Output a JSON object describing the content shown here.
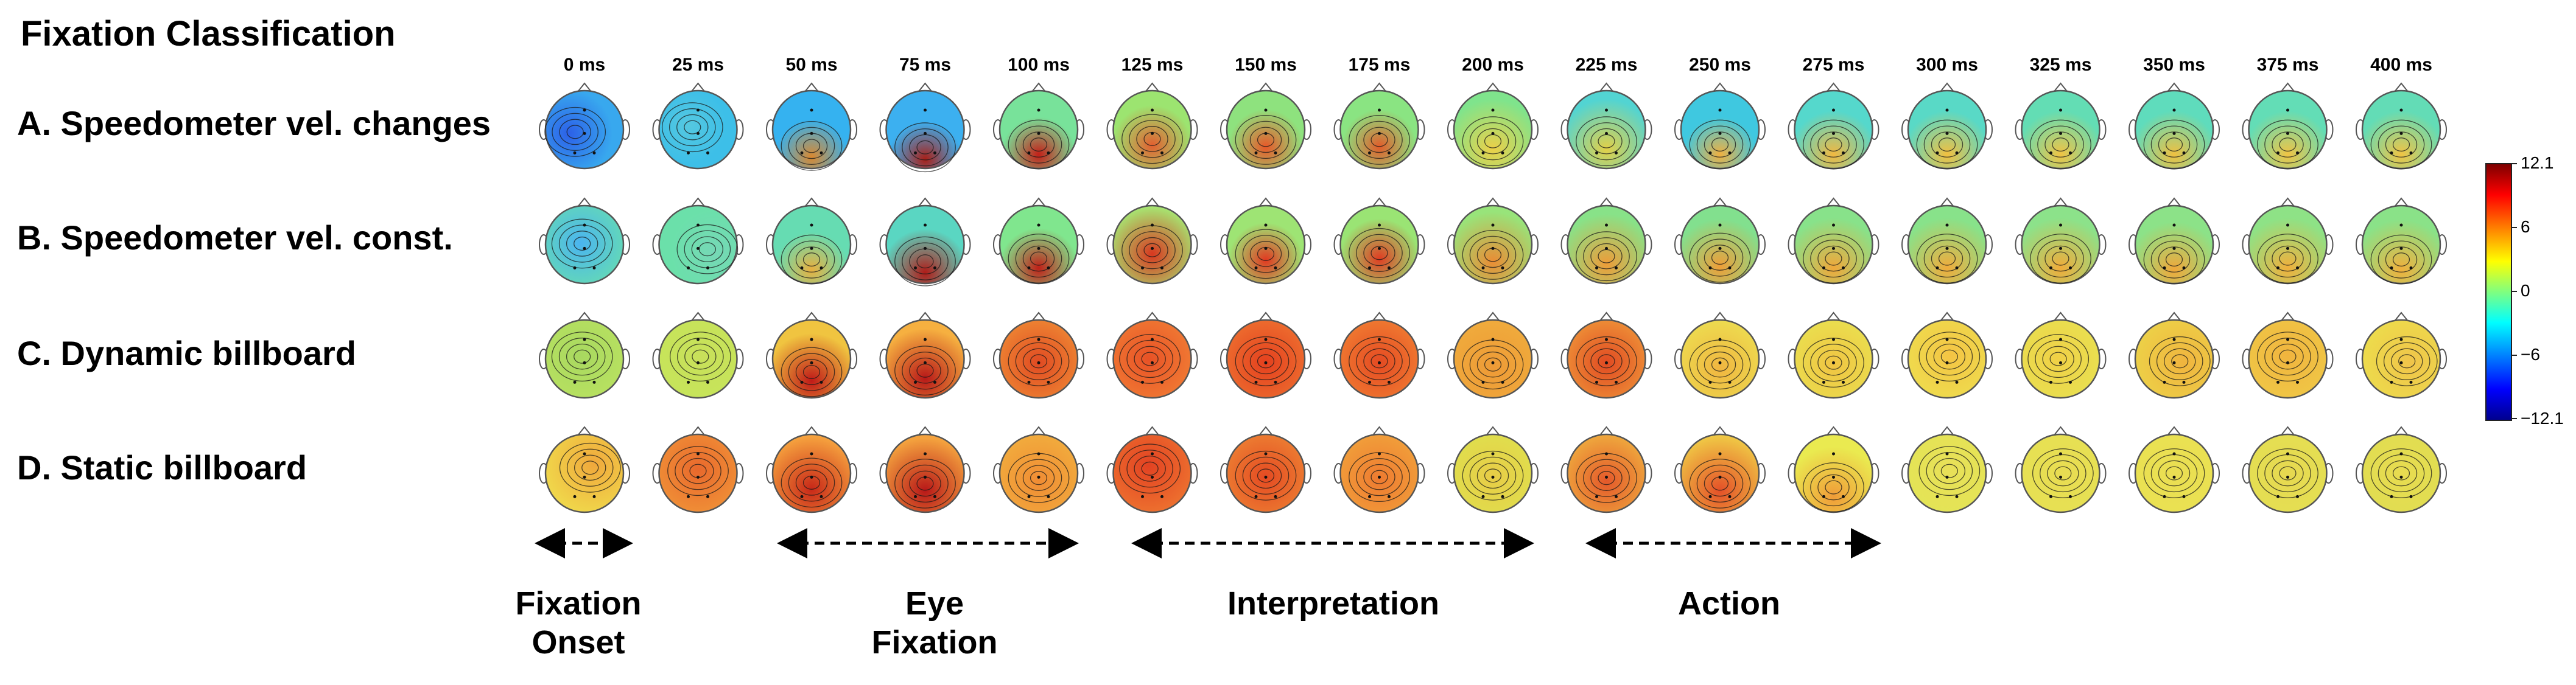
{
  "title": "Fixation Classification",
  "time_labels": [
    "0 ms",
    "25 ms",
    "50 ms",
    "75 ms",
    "100 ms",
    "125 ms",
    "150 ms",
    "175 ms",
    "200 ms",
    "225 ms",
    "250 ms",
    "275 ms",
    "300 ms",
    "325 ms",
    "350 ms",
    "375 ms",
    "400 ms"
  ],
  "rows": [
    {
      "label": "A. Speedometer vel. changes"
    },
    {
      "label": "B. Speedometer vel. const."
    },
    {
      "label": "C. Dynamic billboard"
    },
    {
      "label": "D. Static billboard"
    }
  ],
  "colorbar": {
    "ticks": [
      "12.1",
      "6",
      "0",
      "−6",
      "−12.1"
    ],
    "max": 12.1,
    "min": -12.1
  },
  "phases": [
    {
      "line1": "Fixation",
      "line2": "Onset"
    },
    {
      "line1": "Eye",
      "line2": "Fixation"
    },
    {
      "line1": "Interpretation",
      "line2": ""
    },
    {
      "line1": "Action",
      "line2": ""
    }
  ]
}
